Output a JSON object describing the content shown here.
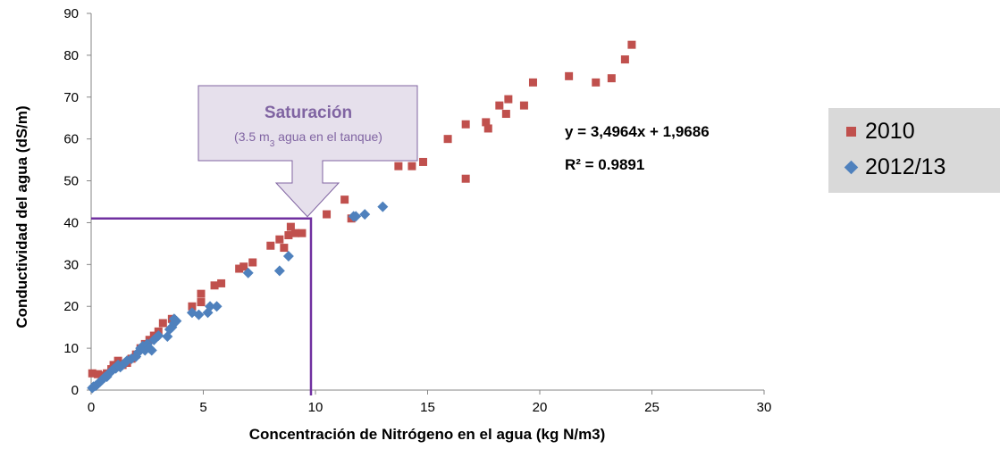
{
  "chart_data": {
    "type": "scatter",
    "xlabel": "Concentración de Nitrógeno en el agua (kg N/m3)",
    "ylabel": "Conductividad del agua (dS/m)",
    "xlim": [
      0,
      30
    ],
    "ylim": [
      0,
      90
    ],
    "xticks": [
      "0",
      "5",
      "10",
      "15",
      "20",
      "25",
      "30"
    ],
    "yticks": [
      "0",
      "10",
      "20",
      "30",
      "40",
      "50",
      "60",
      "70",
      "80",
      "90"
    ],
    "grid": false,
    "legend_position": "right",
    "equation": "y = 3,4964x + 1,9686",
    "r_squared": "R² = 0.9891",
    "annotation": {
      "title": "Saturación",
      "subtitle_prefix": "(3.5 m",
      "subtitle_sub": "3",
      "subtitle_suffix": " agua en el tanque)",
      "saturation_x": 9.8,
      "saturation_y": 41
    },
    "series": [
      {
        "name": "2010",
        "marker": "square",
        "color": "#c0504d",
        "points": [
          [
            0.05,
            4
          ],
          [
            0.3,
            3.8
          ],
          [
            0.5,
            3.5
          ],
          [
            0.7,
            4
          ],
          [
            0.9,
            5
          ],
          [
            1.0,
            6
          ],
          [
            1.1,
            5.5
          ],
          [
            1.2,
            7
          ],
          [
            1.4,
            6
          ],
          [
            1.6,
            6.5
          ],
          [
            1.8,
            7.5
          ],
          [
            2.0,
            8.5
          ],
          [
            2.2,
            10
          ],
          [
            2.4,
            11
          ],
          [
            2.6,
            12
          ],
          [
            2.8,
            13
          ],
          [
            3.0,
            14
          ],
          [
            3.2,
            16
          ],
          [
            3.6,
            17
          ],
          [
            4.5,
            20
          ],
          [
            4.9,
            21
          ],
          [
            4.9,
            23
          ],
          [
            5.5,
            25
          ],
          [
            5.8,
            25.5
          ],
          [
            6.6,
            29
          ],
          [
            6.8,
            29.5
          ],
          [
            7.2,
            30.5
          ],
          [
            8.0,
            34.5
          ],
          [
            8.4,
            36
          ],
          [
            8.6,
            34
          ],
          [
            8.8,
            37
          ],
          [
            8.9,
            39
          ],
          [
            9.1,
            37.5
          ],
          [
            9.4,
            37.5
          ],
          [
            10.5,
            42
          ],
          [
            11.3,
            45.5
          ],
          [
            11.6,
            41
          ],
          [
            13.7,
            53.5
          ],
          [
            14.3,
            53.5
          ],
          [
            14.8,
            54.5
          ],
          [
            15.9,
            60
          ],
          [
            16.7,
            63.5
          ],
          [
            16.7,
            50.5
          ],
          [
            17.6,
            64
          ],
          [
            17.7,
            62.5
          ],
          [
            18.2,
            68
          ],
          [
            18.5,
            66
          ],
          [
            18.6,
            69.5
          ],
          [
            19.3,
            68
          ],
          [
            19.7,
            73.5
          ],
          [
            21.3,
            75
          ],
          [
            22.5,
            73.5
          ],
          [
            23.2,
            74.5
          ],
          [
            23.8,
            79
          ],
          [
            24.1,
            82.5
          ]
        ]
      },
      {
        "name": "2012/13",
        "marker": "diamond",
        "color": "#4f81bd",
        "points": [
          [
            0.05,
            0.5
          ],
          [
            0.1,
            0.8
          ],
          [
            0.2,
            1
          ],
          [
            0.3,
            1.5
          ],
          [
            0.4,
            2
          ],
          [
            0.5,
            2.5
          ],
          [
            0.6,
            3
          ],
          [
            0.7,
            3.2
          ],
          [
            0.8,
            4
          ],
          [
            0.9,
            4.5
          ],
          [
            1.0,
            5
          ],
          [
            1.1,
            5.2
          ],
          [
            1.2,
            6
          ],
          [
            1.3,
            5.5
          ],
          [
            1.4,
            6
          ],
          [
            1.5,
            6.5
          ],
          [
            1.6,
            7
          ],
          [
            1.8,
            7.5
          ],
          [
            2.0,
            8
          ],
          [
            2.1,
            9
          ],
          [
            2.2,
            10
          ],
          [
            2.3,
            10.5
          ],
          [
            2.4,
            9.5
          ],
          [
            2.5,
            11
          ],
          [
            2.6,
            10
          ],
          [
            2.7,
            9.5
          ],
          [
            2.8,
            12
          ],
          [
            3.0,
            13
          ],
          [
            3.4,
            12.8
          ],
          [
            3.5,
            14.5
          ],
          [
            3.6,
            15
          ],
          [
            3.7,
            16
          ],
          [
            3.8,
            16.5
          ],
          [
            3.7,
            17
          ],
          [
            4.5,
            18.5
          ],
          [
            4.8,
            18
          ],
          [
            5.2,
            18.5
          ],
          [
            5.3,
            20
          ],
          [
            5.6,
            20
          ],
          [
            7.0,
            28
          ],
          [
            8.4,
            28.5
          ],
          [
            8.8,
            32
          ],
          [
            11.7,
            41.5
          ],
          [
            11.8,
            41.5
          ],
          [
            12.2,
            42
          ],
          [
            13.0,
            43.8
          ]
        ]
      }
    ]
  }
}
